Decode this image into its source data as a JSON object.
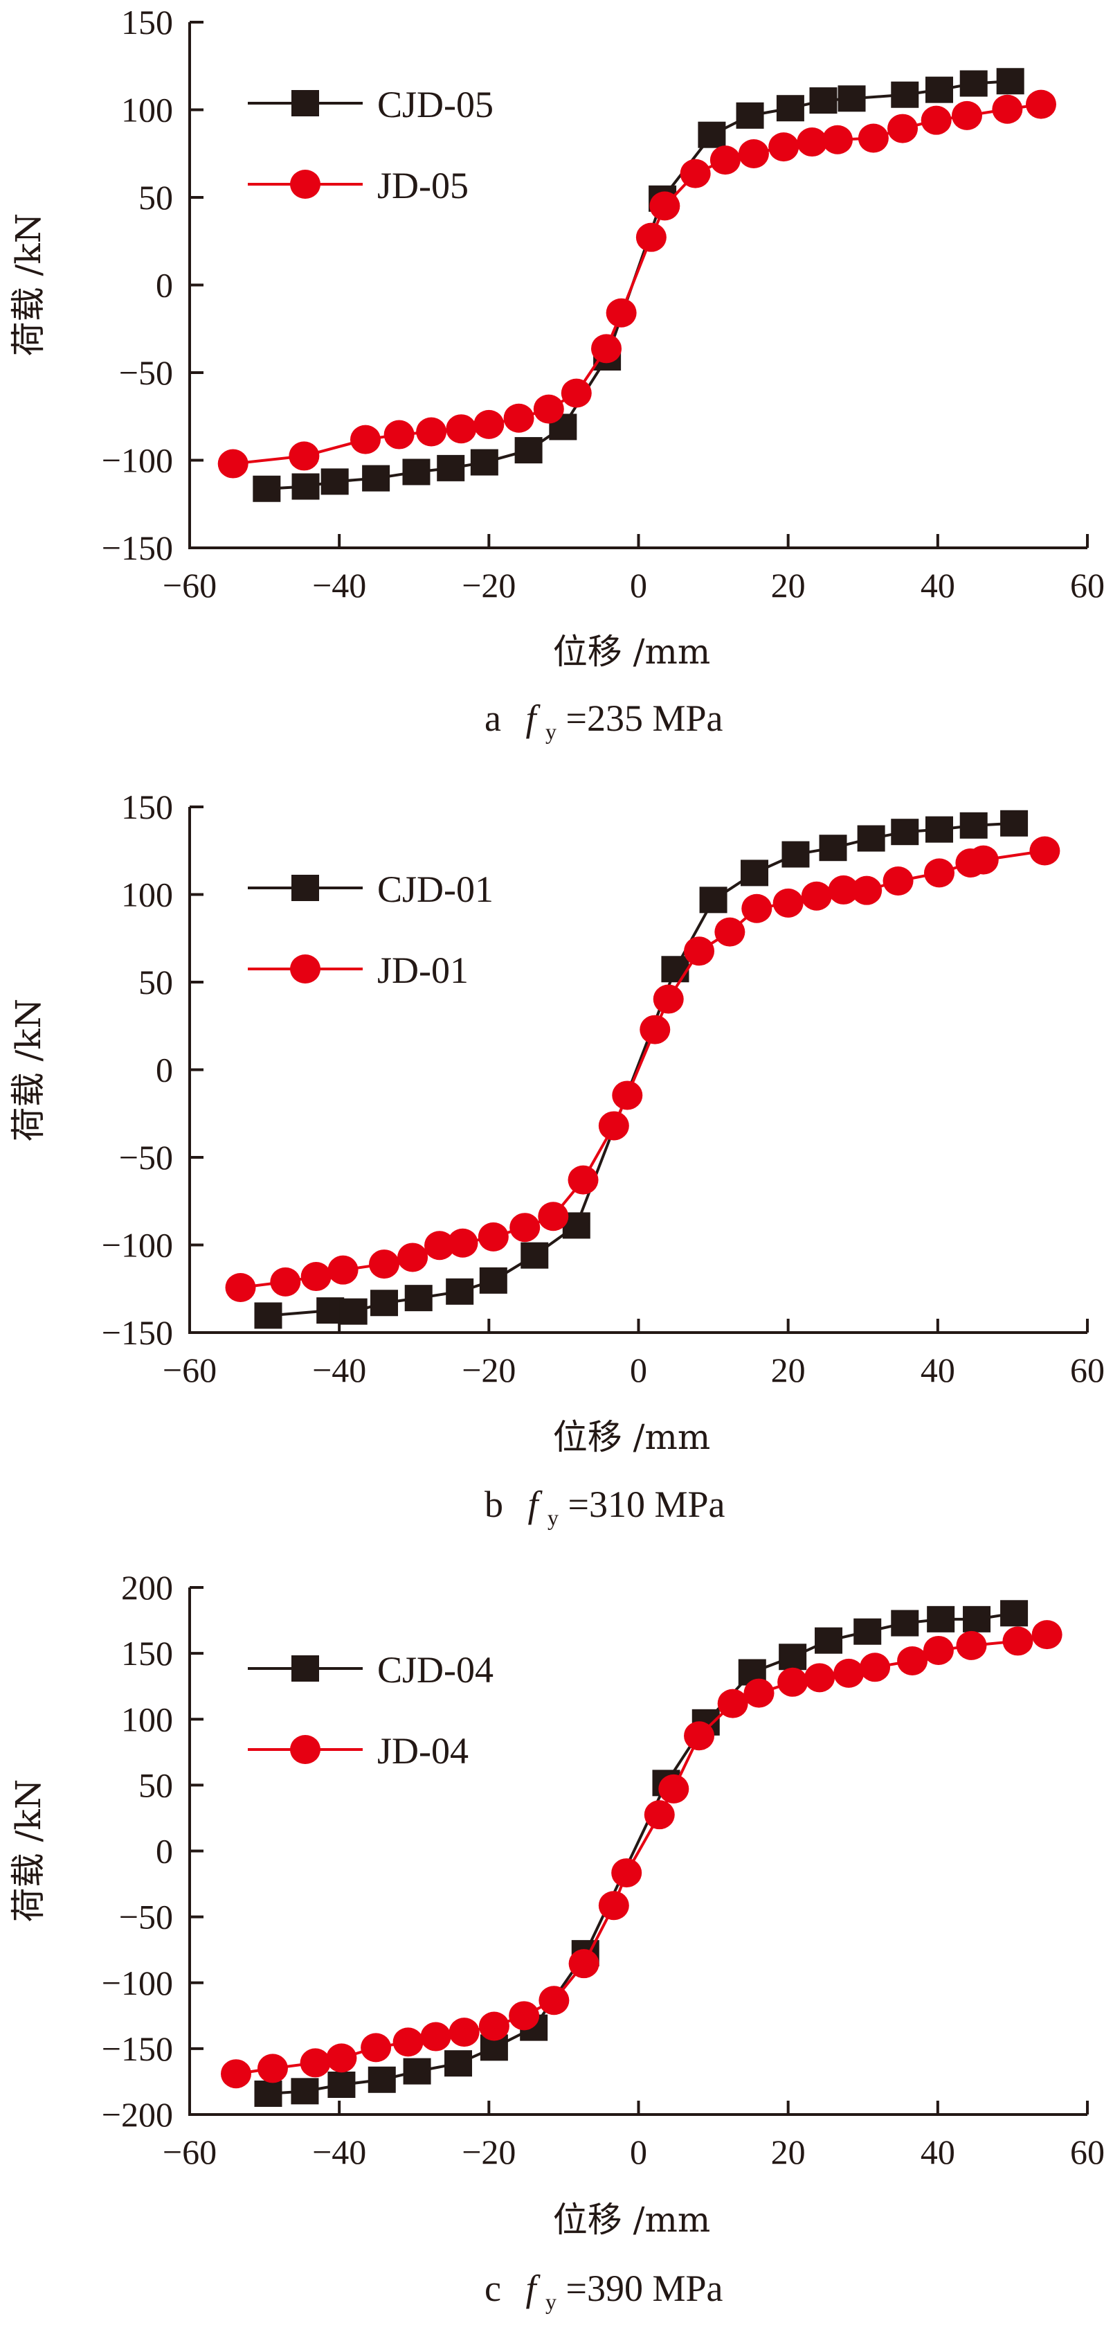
{
  "figure": {
    "panels": [
      {
        "caption": {
          "letter": "a",
          "symbol": "f",
          "subscript": "y",
          "value": "=235 MPa"
        }
      },
      {
        "caption": {
          "letter": "b",
          "symbol": "f",
          "subscript": "y",
          "value": "=310 MPa"
        }
      },
      {
        "caption": {
          "letter": "c",
          "symbol": "f",
          "subscript": "y",
          "value": "=390 MPa"
        }
      }
    ]
  },
  "chart_data": [
    {
      "type": "line",
      "title": "a fy=235 MPa",
      "xlabel": "位移 /mm",
      "ylabel": "荷载 /kN",
      "xlim": [
        -60,
        60
      ],
      "ylim": [
        -150,
        150
      ],
      "xticks": [
        -60,
        -40,
        -20,
        0,
        20,
        40,
        60
      ],
      "yticks": [
        -150,
        -100,
        -50,
        0,
        50,
        100,
        150
      ],
      "xtick_labels": [
        "−60",
        "−40",
        "−20",
        "0",
        "20",
        "40",
        "60"
      ],
      "ytick_labels": [
        "−150",
        "−100",
        "−50",
        "0",
        "50",
        "100",
        "150"
      ],
      "grid": false,
      "legend_position": "top-left",
      "series": [
        {
          "name": "CJD-05",
          "color": "#231815",
          "marker": "square",
          "x": [
            -49.7,
            -44.5,
            -40.6,
            -35.1,
            -29.7,
            -25.1,
            -20.6,
            -14.7,
            -10.1,
            -4.2,
            3.2,
            9.8,
            14.9,
            20.3,
            24.7,
            28.5,
            35.6,
            40.2,
            44.8,
            49.7
          ],
          "y": [
            -116.3,
            -115.0,
            -112.2,
            -110.3,
            -106.7,
            -104.5,
            -101.2,
            -94.3,
            -81.0,
            -41.3,
            49.3,
            85.7,
            96.7,
            100.9,
            105.3,
            106.4,
            108.6,
            111.4,
            115.0,
            116.3
          ]
        },
        {
          "name": "JD-05",
          "color": "#e60012",
          "marker": "circle",
          "x": [
            -54.2,
            -44.7,
            -36.5,
            -32.0,
            -27.7,
            -23.7,
            -20.0,
            -16.0,
            -12.0,
            -8.3,
            -4.3,
            -2.3,
            1.7,
            3.5,
            7.6,
            11.6,
            15.4,
            19.4,
            23.2,
            26.6,
            31.4,
            35.3,
            39.8,
            43.9,
            49.3,
            53.8
          ],
          "y": [
            -102.0,
            -97.6,
            -88.2,
            -85.4,
            -83.8,
            -82.1,
            -79.6,
            -76.0,
            -70.8,
            -61.7,
            -36.3,
            -15.9,
            27.2,
            45.1,
            63.6,
            71.3,
            74.9,
            78.8,
            81.6,
            82.9,
            83.8,
            89.3,
            94.0,
            96.7,
            100.3,
            103.1
          ]
        }
      ]
    },
    {
      "type": "line",
      "title": "b fy=310 MPa",
      "xlabel": "位移 /mm",
      "ylabel": "荷载 /kN",
      "xlim": [
        -60,
        60
      ],
      "ylim": [
        -150,
        150
      ],
      "xticks": [
        -60,
        -40,
        -20,
        0,
        20,
        40,
        60
      ],
      "yticks": [
        -150,
        -100,
        -50,
        0,
        50,
        100,
        150
      ],
      "xtick_labels": [
        "−60",
        "−40",
        "−20",
        "0",
        "20",
        "40",
        "60"
      ],
      "ytick_labels": [
        "−150",
        "−100",
        "−50",
        "0",
        "50",
        "100",
        "150"
      ],
      "grid": false,
      "legend_position": "top-left",
      "series": [
        {
          "name": "CJD-01",
          "color": "#231815",
          "marker": "square",
          "x": [
            -49.5,
            -41.2,
            -38.1,
            -34.0,
            -29.4,
            -23.9,
            -19.4,
            -13.9,
            -8.3,
            4.9,
            10.0,
            15.5,
            21.0,
            26.0,
            31.1,
            35.6,
            40.2,
            44.8,
            50.2
          ],
          "y": [
            -140.3,
            -137.4,
            -138.0,
            -133.1,
            -130.3,
            -126.6,
            -120.3,
            -106.0,
            -88.9,
            57.4,
            96.9,
            112.3,
            122.9,
            126.6,
            132.0,
            135.7,
            137.1,
            139.4,
            140.6
          ]
        },
        {
          "name": "JD-01",
          "color": "#e60012",
          "marker": "circle",
          "x": [
            -53.2,
            -47.2,
            -43.1,
            -39.5,
            -34.0,
            -30.2,
            -26.6,
            -23.5,
            -19.4,
            -15.2,
            -11.4,
            -7.4,
            -3.3,
            -1.5,
            2.2,
            4.0,
            8.1,
            12.2,
            15.8,
            20.0,
            23.8,
            27.4,
            30.5,
            34.7,
            40.2,
            44.4,
            46.1,
            54.3
          ],
          "y": [
            -124.3,
            -121.1,
            -118.0,
            -114.3,
            -110.9,
            -107.1,
            -100.3,
            -98.9,
            -95.4,
            -90.0,
            -83.7,
            -62.9,
            -32.0,
            -14.6,
            22.9,
            40.3,
            67.7,
            78.6,
            92.0,
            95.1,
            99.1,
            102.6,
            102.3,
            107.7,
            112.3,
            118.0,
            119.7,
            124.9
          ]
        }
      ]
    },
    {
      "type": "line",
      "title": "c fy=390 MPa",
      "xlabel": "位移 /mm",
      "ylabel": "荷载 /kN",
      "xlim": [
        -60,
        60
      ],
      "ylim": [
        -200,
        200
      ],
      "xticks": [
        -60,
        -40,
        -20,
        0,
        20,
        40,
        60
      ],
      "yticks": [
        -200,
        -150,
        -100,
        -50,
        0,
        50,
        100,
        150,
        200
      ],
      "xtick_labels": [
        "−60",
        "−40",
        "−20",
        "0",
        "20",
        "40",
        "60"
      ],
      "ytick_labels": [
        "−200",
        "−150",
        "−100",
        "−50",
        "0",
        "50",
        "100",
        "150",
        "200"
      ],
      "grid": false,
      "legend_position": "top-left",
      "series": [
        {
          "name": "CJD-04",
          "color": "#231815",
          "marker": "square",
          "x": [
            -49.5,
            -44.6,
            -39.7,
            -34.3,
            -29.6,
            -24.1,
            -19.3,
            -14.0,
            -7.1,
            3.7,
            9.0,
            15.2,
            20.6,
            25.4,
            30.6,
            35.6,
            40.4,
            45.2,
            50.2
          ],
          "y": [
            -184.2,
            -182.3,
            -177.4,
            -173.6,
            -167.2,
            -161.2,
            -149.2,
            -134.1,
            -77.6,
            51.6,
            97.6,
            135.6,
            147.3,
            159.7,
            166.5,
            172.9,
            175.9,
            175.9,
            180.4
          ]
        },
        {
          "name": "JD-04",
          "color": "#e60012",
          "marker": "circle",
          "x": [
            -53.8,
            -48.9,
            -43.2,
            -39.7,
            -35.1,
            -30.8,
            -27.1,
            -23.3,
            -19.3,
            -15.3,
            -11.3,
            -7.3,
            -3.3,
            -1.6,
            2.8,
            4.7,
            8.1,
            12.6,
            16.1,
            20.6,
            24.2,
            28.1,
            31.6,
            36.6,
            40.1,
            44.5,
            50.7,
            54.6
          ],
          "y": [
            -169.1,
            -165.0,
            -160.8,
            -157.1,
            -149.2,
            -145.0,
            -140.9,
            -137.5,
            -133.0,
            -125.0,
            -113.4,
            -85.5,
            -41.4,
            -16.6,
            27.5,
            47.1,
            87.4,
            111.9,
            119.8,
            128.1,
            131.5,
            134.9,
            139.4,
            144.3,
            152.2,
            155.9,
            159.3,
            164.2
          ]
        }
      ]
    }
  ]
}
